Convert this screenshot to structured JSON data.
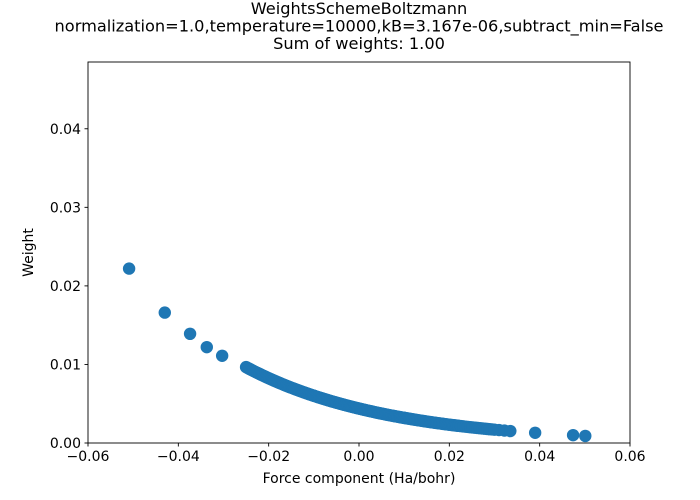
{
  "figure": {
    "kind": "matplotlib-scatter-figure",
    "background": "#ffffff"
  },
  "chart_data": {
    "type": "scatter",
    "title_lines": [
      "WeightsSchemeBoltzmann",
      "normalization=1.0,temperature=10000,kB=3.167e-06,subtract_min=False",
      "Sum of weights: 1.00"
    ],
    "xlabel": "Force component (Ha/bohr)",
    "ylabel": "Weight",
    "xlim": [
      -0.06,
      0.06
    ],
    "ylim": [
      0,
      0.0485
    ],
    "xticks": [
      -0.06,
      -0.04,
      -0.02,
      0.0,
      0.02,
      0.04,
      0.06
    ],
    "xtick_labels": [
      "−0.06",
      "−0.04",
      "−0.02",
      "0.00",
      "0.02",
      "0.04",
      "0.06"
    ],
    "yticks": [
      0.0,
      0.01,
      0.02,
      0.03,
      0.04
    ],
    "ytick_labels": [
      "0.00",
      "0.01",
      "0.02",
      "0.03",
      "0.04"
    ],
    "grid": false,
    "legend": null,
    "axis_color": "#000000",
    "marker": {
      "color": "#1f77b4",
      "radius_px": 6.2
    },
    "model": {
      "formula": "weight = exp(-force/kT)/Z, normalized so sum of weights = 1.00",
      "kT": 0.03167,
      "Z": 228
    },
    "isolated_points": [
      [
        -0.0509,
        0.0222
      ],
      [
        -0.043,
        0.0166
      ],
      [
        -0.0374,
        0.0139
      ],
      [
        -0.0337,
        0.0122
      ],
      [
        -0.0303,
        0.0111
      ],
      [
        0.039,
        0.0013
      ],
      [
        0.0474,
        0.001
      ],
      [
        0.0501,
        0.0009
      ]
    ],
    "band_segments": [
      {
        "from": -0.025,
        "to": -0.01,
        "count": 55
      },
      {
        "from": -0.01,
        "to": 0.01,
        "count": 75
      },
      {
        "from": 0.01,
        "to": 0.022,
        "count": 38
      },
      {
        "from": 0.022,
        "to": 0.03,
        "count": 16
      }
    ],
    "band_extra_x": [
      0.031,
      0.0322,
      0.0335
    ]
  }
}
